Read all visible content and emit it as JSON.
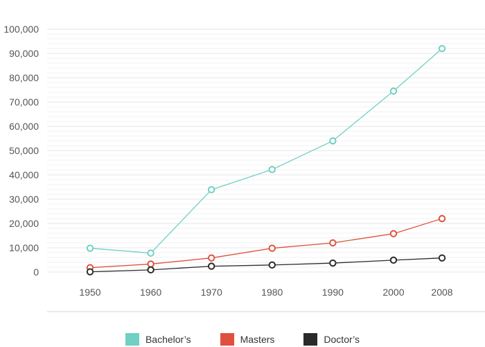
{
  "chart_data": {
    "type": "line",
    "x": [
      "1950",
      "1960",
      "1970",
      "1980",
      "1990",
      "2000",
      "2008"
    ],
    "ylim": [
      0,
      100000
    ],
    "y_ticks": [
      "0",
      "10,000",
      "20,000",
      "30,000",
      "40,000",
      "50,000",
      "60,000",
      "70,000",
      "80,000",
      "90,000",
      "100,000"
    ],
    "series": [
      {
        "name": "Bachelor’s",
        "color": "#6fd0c3",
        "values": [
          9800,
          7800,
          33900,
          42200,
          54000,
          74500,
          92000
        ]
      },
      {
        "name": "Masters",
        "color": "#e0503d",
        "values": [
          1800,
          3300,
          5800,
          9800,
          12000,
          15800,
          22000
        ]
      },
      {
        "name": "Doctor’s",
        "color": "#2b2b2b",
        "values": [
          100,
          900,
          2400,
          2900,
          3700,
          4900,
          5800
        ]
      }
    ],
    "grid": true,
    "legend_position": "bottom"
  }
}
